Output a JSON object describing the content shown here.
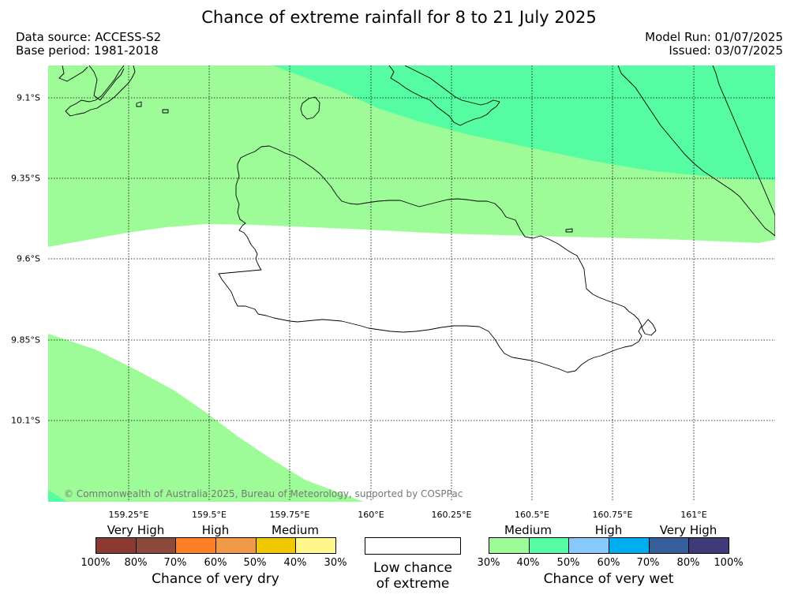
{
  "title": "Chance of extreme rainfall for 8 to 21 July 2025",
  "data_source": "Data source: ACCESS-S2",
  "base_period": "Base period: 1981-2018",
  "model_run": "Model Run: 01/07/2025",
  "issued": "Issued: 03/07/2025",
  "copyright": "© Commonwealth of Australia 2025, Bureau of Meteorology, supported by COSPPac",
  "lat_labels": [
    "9.1°S",
    "9.35°S",
    "9.6°S",
    "9.85°S",
    "10.1°S"
  ],
  "lon_labels": [
    "159.25°E",
    "159.5°E",
    "159.75°E",
    "160°E",
    "160.25°E",
    "160.5°E",
    "160.75°E",
    "161°E"
  ],
  "dry_legend": {
    "headings": [
      "Very High",
      "High",
      "Medium"
    ],
    "colors": [
      "#8b3a32",
      "#8b4a3c",
      "#ff7f27",
      "#f09a48",
      "#f0c800",
      "#fff68c"
    ],
    "ticks": [
      "100%",
      "80%",
      "70%",
      "60%",
      "50%",
      "40%",
      "30%"
    ],
    "caption": "Chance of very dry"
  },
  "low_legend": {
    "line1": "Low chance",
    "line2": "of extreme"
  },
  "wet_legend": {
    "headings": [
      "Medium",
      "High",
      "Very High"
    ],
    "colors": [
      "#9dfc98",
      "#55fca2",
      "#86c9fb",
      "#00aeef",
      "#355e9a",
      "#3f3a78"
    ],
    "ticks": [
      "30%",
      "40%",
      "50%",
      "60%",
      "70%",
      "80%",
      "100%"
    ],
    "caption": "Chance of very wet"
  },
  "map_colors": {
    "medium_wet": "#9dfc98",
    "medium_wet_high": "#55fca2",
    "land_outline": "#000000",
    "grid": "#000000"
  }
}
